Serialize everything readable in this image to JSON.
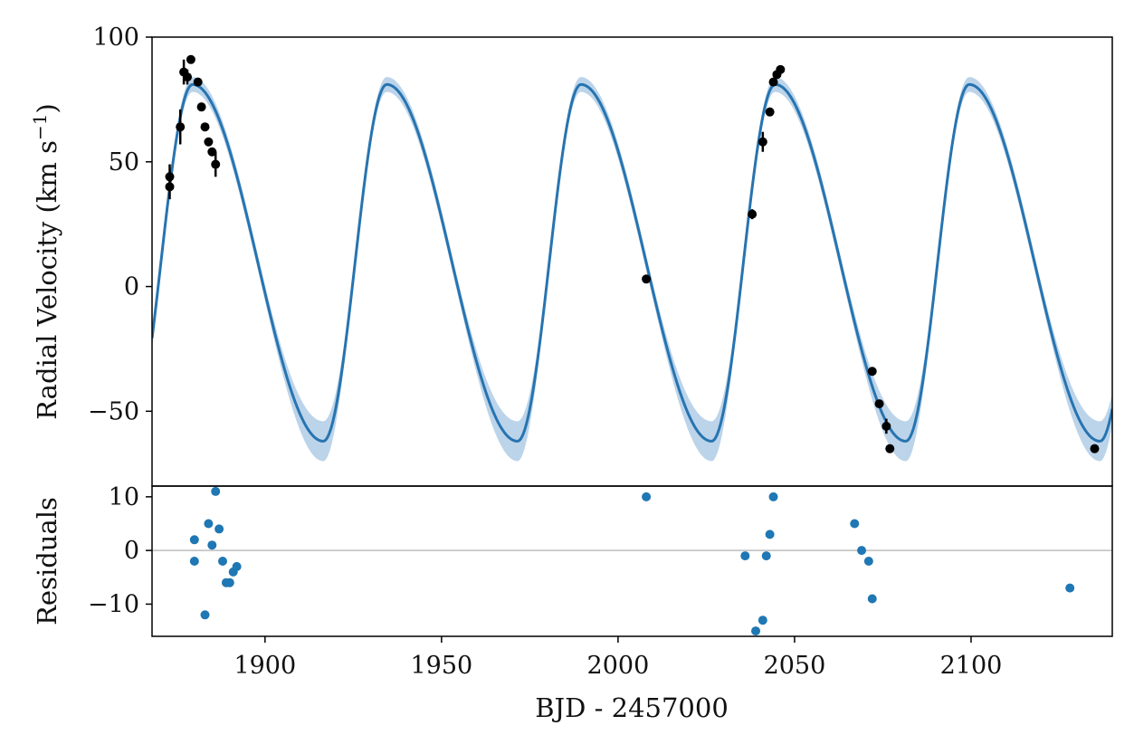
{
  "chart_data": [
    {
      "type": "line",
      "panel": "top",
      "title": "",
      "xlabel": "",
      "ylabel": "Radial Velocity (km s",
      "ylabel_sup": "−1",
      "ylabel_close": ")",
      "xlim": [
        1868,
        2140
      ],
      "ylim": [
        -80,
        100
      ],
      "yticks": [
        100,
        50,
        0,
        -50
      ],
      "ytick_labels": [
        "100",
        "50",
        "0",
        "−50"
      ],
      "grid": false,
      "legend": "none",
      "colors": {
        "model": "#2774b0",
        "band": "#bcd4ea",
        "data": "#000000"
      },
      "model": {
        "name": "",
        "period": 55.0,
        "peak_time": 1879.5,
        "max": 81,
        "min": -62,
        "rise_days": 18.0,
        "band_halfwidth": 3,
        "band_halfwidth_at_min": 8
      },
      "points": [
        {
          "x": 1873,
          "y": 44,
          "err": 5
        },
        {
          "x": 1873,
          "y": 40,
          "err": 5
        },
        {
          "x": 1876,
          "y": 64,
          "err": 7
        },
        {
          "x": 1877,
          "y": 86,
          "err": 5
        },
        {
          "x": 1878,
          "y": 84,
          "err": 3
        },
        {
          "x": 1879,
          "y": 91,
          "err": 0
        },
        {
          "x": 1881,
          "y": 82,
          "err": 0
        },
        {
          "x": 1882,
          "y": 72,
          "err": 0
        },
        {
          "x": 1883,
          "y": 64,
          "err": 0
        },
        {
          "x": 1884,
          "y": 58,
          "err": 0
        },
        {
          "x": 1885,
          "y": 54,
          "err": 0
        },
        {
          "x": 1886,
          "y": 49,
          "err": 5
        },
        {
          "x": 2008,
          "y": 3,
          "err": 0
        },
        {
          "x": 2038,
          "y": 29,
          "err": 2
        },
        {
          "x": 2041,
          "y": 58,
          "err": 4
        },
        {
          "x": 2043,
          "y": 70,
          "err": 0
        },
        {
          "x": 2044,
          "y": 82,
          "err": 0
        },
        {
          "x": 2045,
          "y": 85,
          "err": 0
        },
        {
          "x": 2046,
          "y": 87,
          "err": 0
        },
        {
          "x": 2072,
          "y": -34,
          "err": 0
        },
        {
          "x": 2074,
          "y": -47,
          "err": 0
        },
        {
          "x": 2076,
          "y": -56,
          "err": 3
        },
        {
          "x": 2077,
          "y": -65,
          "err": 0
        },
        {
          "x": 2135,
          "y": -65,
          "err": 0
        }
      ]
    },
    {
      "type": "scatter",
      "panel": "bottom",
      "title": "",
      "xlabel": "BJD - 2457000",
      "ylabel": "Residuals",
      "xlim": [
        1868,
        2140
      ],
      "ylim": [
        -16,
        12
      ],
      "xticks": [
        1900,
        1950,
        2000,
        2050,
        2100
      ],
      "xtick_labels": [
        "1900",
        "1950",
        "2000",
        "2050",
        "2100"
      ],
      "yticks": [
        10,
        0,
        -10
      ],
      "ytick_labels": [
        "10",
        "0",
        "−10"
      ],
      "zero_line": 0,
      "grid": false,
      "legend": "none",
      "colors": {
        "points": "#1f77b4",
        "zero_line": "#bdbdbd"
      },
      "points": [
        {
          "x": 1880,
          "y": 2
        },
        {
          "x": 1880,
          "y": -2
        },
        {
          "x": 1883,
          "y": -12
        },
        {
          "x": 1884,
          "y": 5
        },
        {
          "x": 1885,
          "y": 1
        },
        {
          "x": 1886,
          "y": 11
        },
        {
          "x": 1887,
          "y": 4
        },
        {
          "x": 1888,
          "y": -2
        },
        {
          "x": 1889,
          "y": -6
        },
        {
          "x": 1890,
          "y": -6
        },
        {
          "x": 1891,
          "y": -4
        },
        {
          "x": 1892,
          "y": -3
        },
        {
          "x": 2008,
          "y": 10
        },
        {
          "x": 2036,
          "y": -1
        },
        {
          "x": 2039,
          "y": -15
        },
        {
          "x": 2041,
          "y": -13
        },
        {
          "x": 2042,
          "y": -1
        },
        {
          "x": 2043,
          "y": 3
        },
        {
          "x": 2044,
          "y": 10
        },
        {
          "x": 2067,
          "y": 5
        },
        {
          "x": 2069,
          "y": 0
        },
        {
          "x": 2071,
          "y": -2
        },
        {
          "x": 2072,
          "y": -9
        },
        {
          "x": 2128,
          "y": -7
        }
      ]
    }
  ]
}
